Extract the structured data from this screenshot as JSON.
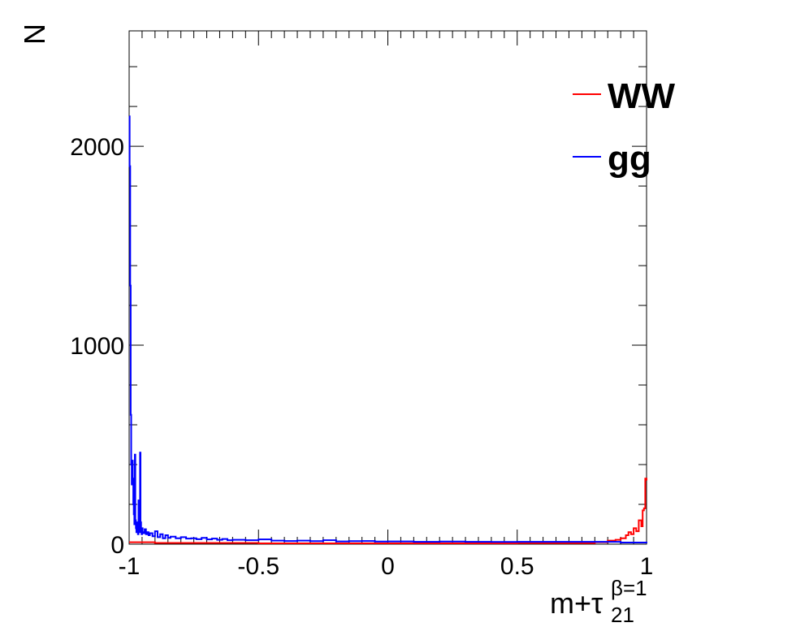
{
  "chart_data": {
    "type": "line",
    "title": "",
    "xlabel": {
      "base": "m+τ",
      "superscript": "β=1",
      "subscript": "21"
    },
    "ylabel": "N",
    "xlim": [
      -1,
      1
    ],
    "ylim": [
      0,
      2580
    ],
    "x_ticks": [
      -1,
      -0.5,
      0,
      0.5,
      1
    ],
    "x_tick_labels": [
      "-1",
      "-0.5",
      "0",
      "0.5",
      "1"
    ],
    "y_ticks": [
      0,
      1000,
      2000
    ],
    "y_tick_labels": [
      "0",
      "1000",
      "2000"
    ],
    "grid": false,
    "legend_position": "top-right",
    "series": [
      {
        "name": "WW",
        "color": "#ff0000",
        "x": [
          -1.0,
          -0.9,
          -0.5,
          0.0,
          0.5,
          0.8,
          0.85,
          0.88,
          0.9,
          0.92,
          0.93,
          0.94,
          0.95,
          0.96,
          0.97,
          0.98,
          0.985,
          0.99,
          0.995,
          1.0
        ],
        "values": [
          10,
          6,
          4,
          4,
          5,
          10,
          18,
          22,
          30,
          45,
          60,
          50,
          80,
          65,
          120,
          90,
          170,
          180,
          330,
          320
        ]
      },
      {
        "name": "gg",
        "color": "#0000ff",
        "x": [
          -1.0,
          -0.998,
          -0.996,
          -0.994,
          -0.992,
          -0.99,
          -0.988,
          -0.986,
          -0.984,
          -0.982,
          -0.98,
          -0.978,
          -0.976,
          -0.974,
          -0.972,
          -0.97,
          -0.968,
          -0.966,
          -0.964,
          -0.962,
          -0.96,
          -0.958,
          -0.956,
          -0.954,
          -0.952,
          -0.95,
          -0.948,
          -0.945,
          -0.94,
          -0.935,
          -0.93,
          -0.925,
          -0.92,
          -0.91,
          -0.9,
          -0.89,
          -0.88,
          -0.87,
          -0.86,
          -0.85,
          -0.84,
          -0.82,
          -0.8,
          -0.78,
          -0.76,
          -0.74,
          -0.72,
          -0.7,
          -0.68,
          -0.66,
          -0.64,
          -0.62,
          -0.6,
          -0.55,
          -0.5,
          -0.45,
          -0.4,
          -0.35,
          -0.3,
          -0.25,
          -0.2,
          -0.15,
          -0.1,
          -0.05,
          0.0,
          0.1,
          0.2,
          0.3,
          0.4,
          0.5,
          0.6,
          0.7,
          0.8,
          0.9,
          1.0
        ],
        "values": [
          2150,
          1900,
          1300,
          650,
          400,
          300,
          420,
          330,
          200,
          150,
          100,
          450,
          120,
          80,
          60,
          110,
          70,
          50,
          220,
          90,
          60,
          460,
          110,
          70,
          50,
          80,
          60,
          55,
          75,
          50,
          60,
          45,
          55,
          40,
          65,
          35,
          50,
          30,
          45,
          32,
          38,
          30,
          35,
          28,
          30,
          25,
          32,
          24,
          28,
          22,
          26,
          20,
          22,
          20,
          24,
          18,
          16,
          18,
          15,
          20,
          14,
          15,
          16,
          13,
          14,
          12,
          13,
          12,
          11,
          12,
          12,
          12,
          12,
          8,
          5
        ]
      }
    ]
  }
}
